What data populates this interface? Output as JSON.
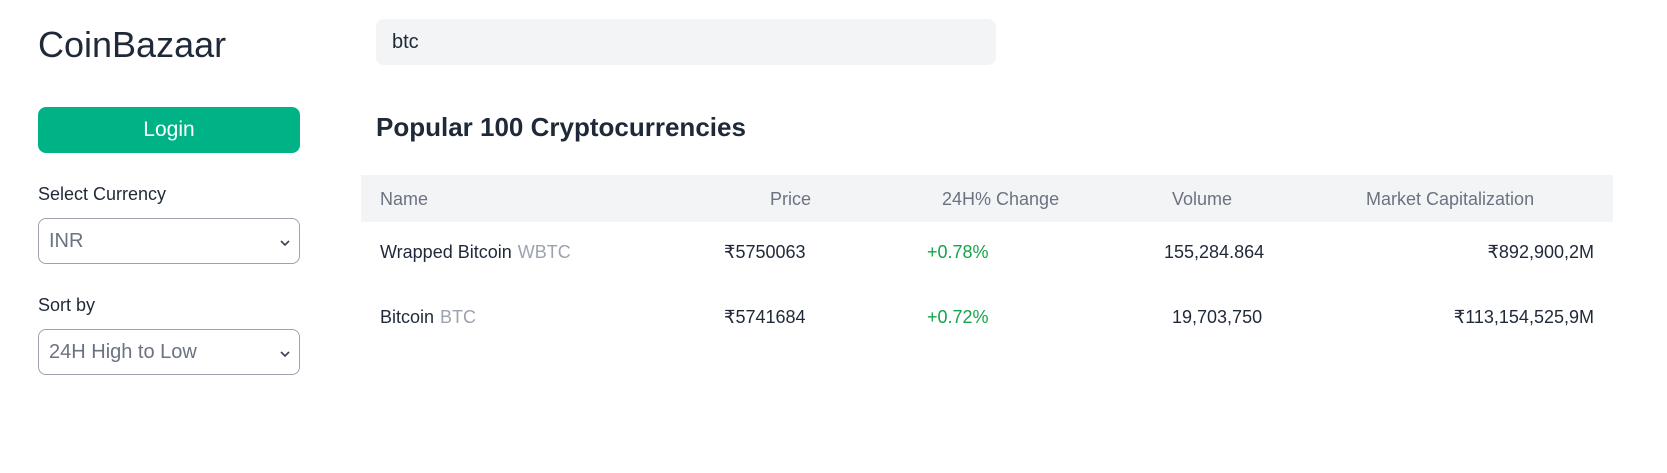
{
  "app": {
    "logo": "CoinBazaar"
  },
  "sidebar": {
    "login_label": "Login",
    "currency_label": "Select Currency",
    "currency_value": "INR",
    "sort_label": "Sort by",
    "sort_value": "24H High to Low"
  },
  "search": {
    "value": "btc"
  },
  "main": {
    "heading": "Popular 100 Cryptocurrencies"
  },
  "table": {
    "columns": [
      "Name",
      "Price",
      "24H% Change",
      "Volume",
      "Market Capitalization"
    ],
    "rows": [
      {
        "name": "Wrapped Bitcoin",
        "symbol": "WBTC",
        "price": "₹5750063",
        "change": "+0.78%",
        "volume": "155,284.864",
        "market_cap": "₹892,900,2M"
      },
      {
        "name": "Bitcoin",
        "symbol": "BTC",
        "price": "₹5741684",
        "change": "+0.72%",
        "volume": "19,703,750",
        "market_cap": "₹113,154,525,9M"
      }
    ]
  },
  "colors": {
    "accent": "#00b386",
    "positive": "#16a34a"
  },
  "icons": {
    "select_chevron": "chevron-down-icon"
  }
}
